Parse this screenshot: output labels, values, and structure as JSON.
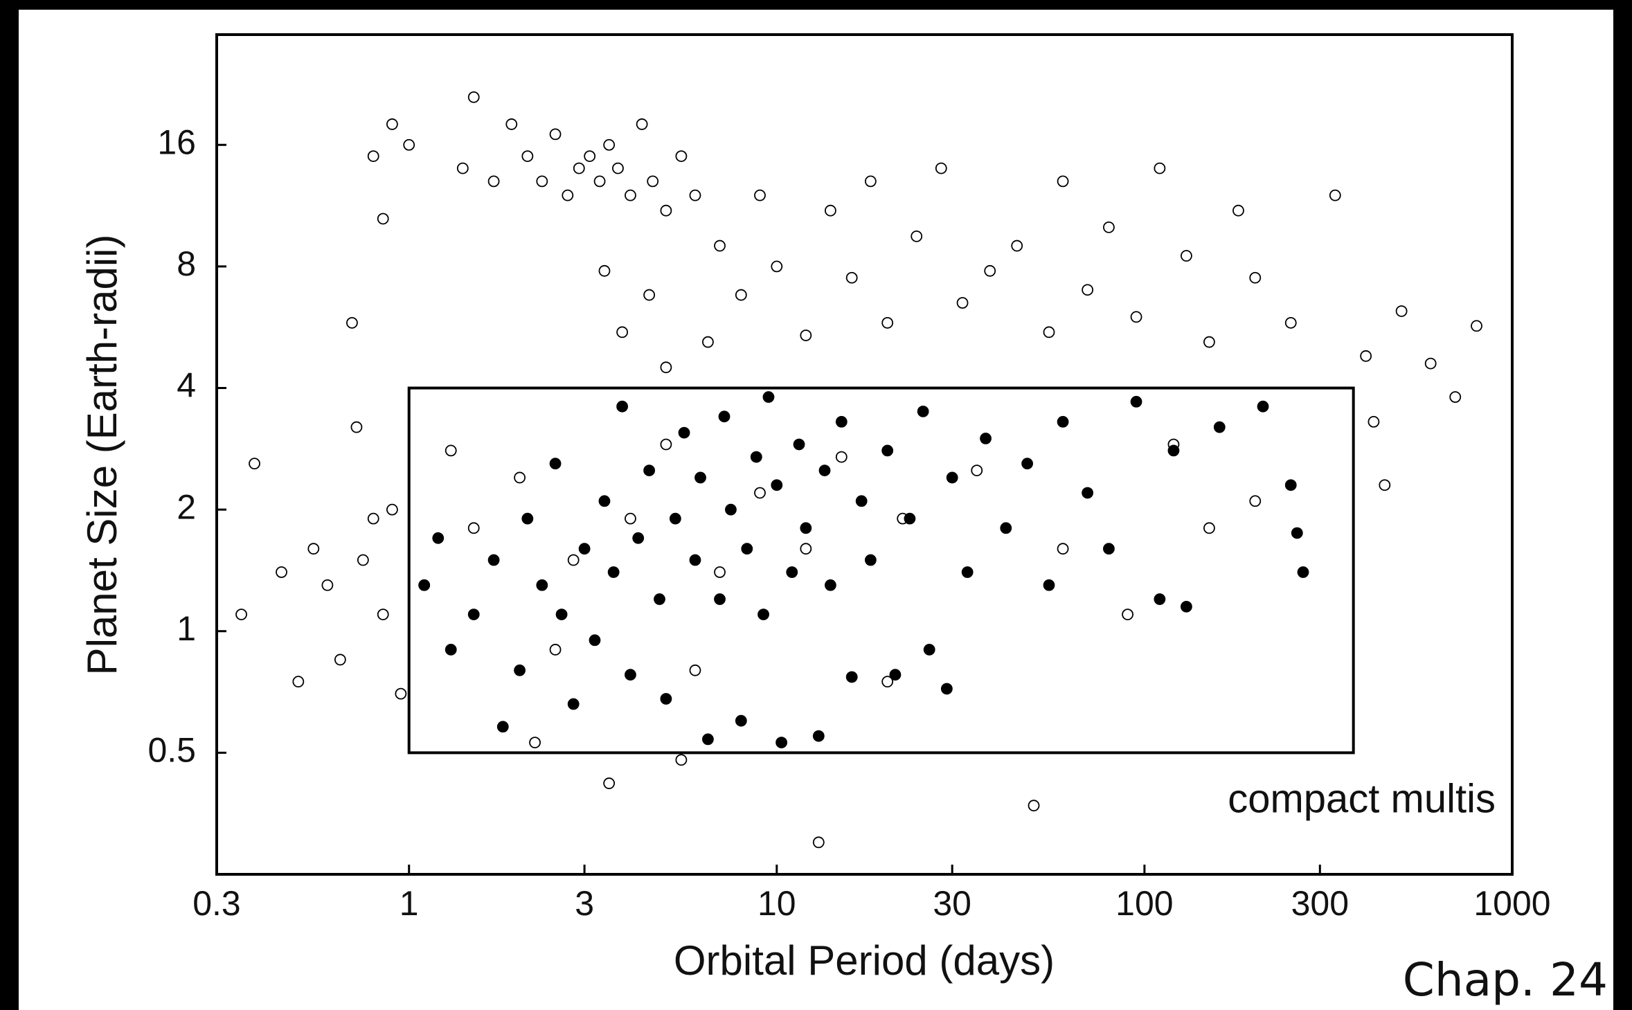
{
  "chart_data": {
    "type": "scatter",
    "x_label": "Orbital Period (days)",
    "y_label": "Planet Size (Earth-radii)",
    "annotation": "compact multis",
    "footer": "Chap. 24",
    "xscale": "log",
    "yscale": "log",
    "xlim": [
      0.3,
      1000
    ],
    "ylim": [
      0.25,
      30
    ],
    "xticks": [
      0.3,
      1,
      3,
      10,
      30,
      100,
      300,
      1000
    ],
    "yticks": [
      0.5,
      1,
      2,
      4,
      8,
      16
    ],
    "box": {
      "x": [
        1,
        370
      ],
      "y": [
        0.5,
        4
      ],
      "color": "#000"
    },
    "series": [
      {
        "marker": "open",
        "color": "#000",
        "x": [
          0.35,
          0.38,
          0.45,
          0.5,
          0.55,
          0.6,
          0.65,
          0.7,
          0.72,
          0.75,
          0.8,
          0.85,
          0.9,
          0.95,
          0.8,
          0.85,
          0.9,
          1.0,
          1.1,
          1.3,
          1.4,
          1.5,
          1.7,
          1.9,
          2.1,
          2.3,
          2.5,
          2.7,
          2.9,
          3.1,
          3.3,
          3.5,
          3.7,
          4.0,
          4.3,
          4.6,
          5.0,
          5.5,
          6,
          3.4,
          3.8,
          4.5,
          5,
          6.5,
          7,
          8,
          9,
          10,
          12,
          14,
          16,
          18,
          20,
          24,
          28,
          32,
          38,
          45,
          55,
          60,
          70,
          80,
          95,
          110,
          130,
          150,
          180,
          200,
          250,
          330,
          400,
          500,
          600,
          800,
          700,
          450,
          420,
          2.2,
          3.5,
          5.5,
          13,
          50,
          1.5,
          2,
          2.8,
          4,
          5,
          7,
          9,
          12,
          15,
          22,
          35,
          60,
          90,
          150,
          200,
          120,
          2.5,
          6,
          20
        ],
        "values": [
          1.1,
          2.6,
          1.4,
          0.75,
          1.6,
          1.3,
          0.85,
          5.8,
          3.2,
          1.5,
          1.9,
          1.1,
          2.0,
          0.7,
          15,
          10.5,
          18,
          16,
          1.3,
          2.8,
          14,
          21,
          13,
          18,
          15,
          13,
          17,
          12,
          14,
          15,
          13,
          16,
          14,
          12,
          18,
          13,
          11,
          15,
          12,
          7.8,
          5.5,
          6.8,
          4.5,
          5.2,
          9,
          6.8,
          12,
          8,
          5.4,
          11,
          7.5,
          13,
          5.8,
          9.5,
          14,
          6.5,
          7.8,
          9,
          5.5,
          13,
          7,
          10,
          6,
          14,
          8.5,
          5.2,
          11,
          7.5,
          5.8,
          12,
          4.8,
          6.2,
          4.6,
          5.7,
          3.8,
          2.3,
          3.3,
          0.53,
          0.42,
          0.48,
          0.3,
          0.37,
          1.8,
          2.4,
          1.5,
          1.9,
          2.9,
          1.4,
          2.2,
          1.6,
          2.7,
          1.9,
          2.5,
          1.6,
          1.1,
          1.8,
          2.1,
          2.9,
          0.9,
          0.8,
          0.75
        ]
      },
      {
        "marker": "filled",
        "color": "#000",
        "x": [
          1.1,
          1.2,
          1.3,
          1.5,
          1.7,
          1.8,
          2,
          2.1,
          2.3,
          2.5,
          2.6,
          2.8,
          3,
          3.2,
          3.4,
          3.6,
          3.8,
          4,
          4.2,
          4.5,
          4.8,
          5,
          5.3,
          5.6,
          6,
          6.2,
          6.5,
          7,
          7.2,
          7.5,
          8,
          8.3,
          8.8,
          9.2,
          9.5,
          10,
          10.3,
          11,
          11.5,
          12,
          13,
          13.5,
          14,
          15,
          16,
          17,
          18,
          20,
          21,
          23,
          25,
          26,
          29,
          30,
          33,
          37,
          42,
          48,
          55,
          60,
          70,
          80,
          95,
          110,
          120,
          130,
          160,
          210,
          250,
          260,
          270
        ],
        "values": [
          1.3,
          1.7,
          0.9,
          1.1,
          1.5,
          0.58,
          0.8,
          1.9,
          1.3,
          2.6,
          1.1,
          0.66,
          1.6,
          0.95,
          2.1,
          1.4,
          3.6,
          0.78,
          1.7,
          2.5,
          1.2,
          0.68,
          1.9,
          3.1,
          1.5,
          2.4,
          0.54,
          1.2,
          3.4,
          2,
          0.6,
          1.6,
          2.7,
          1.1,
          3.8,
          2.3,
          0.53,
          1.4,
          2.9,
          1.8,
          0.55,
          2.5,
          1.3,
          3.3,
          0.77,
          2.1,
          1.5,
          2.8,
          0.78,
          1.9,
          3.5,
          0.9,
          0.72,
          2.4,
          1.4,
          3,
          1.8,
          2.6,
          1.3,
          3.3,
          2.2,
          1.6,
          3.7,
          1.2,
          2.8,
          1.15,
          3.2,
          3.6,
          2.3,
          1.75,
          1.4
        ]
      }
    ]
  }
}
